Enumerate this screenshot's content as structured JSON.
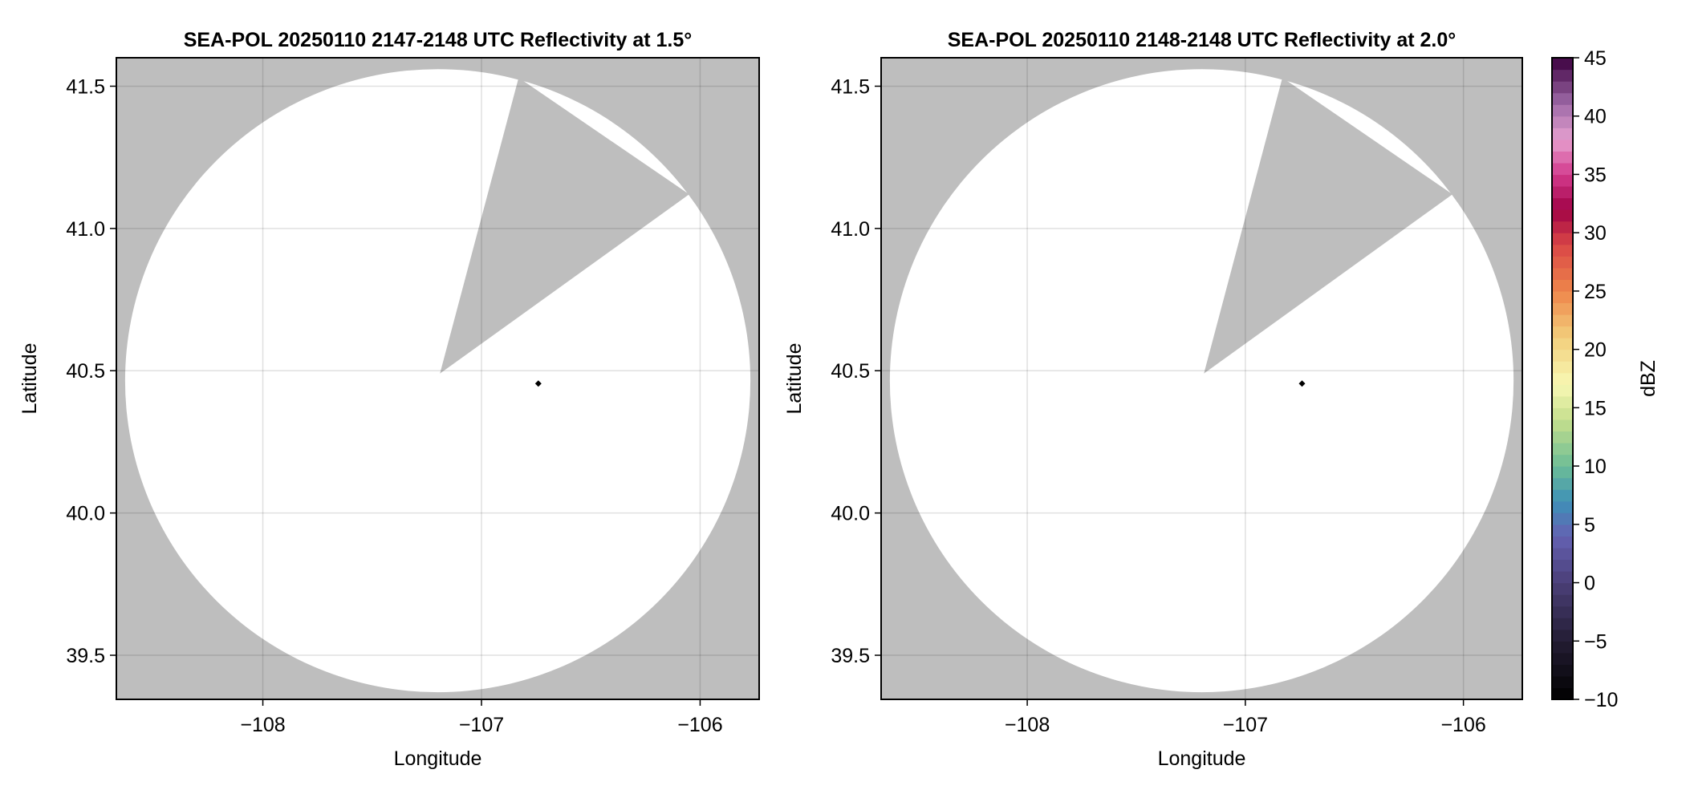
{
  "chart_data": [
    {
      "type": "heatmap",
      "title": "SEA-POL 20250110 2147-2148 UTC Reflectivity at 1.5°",
      "xlabel": "Longitude",
      "ylabel": "Latitude",
      "xlim": [
        -108.67,
        -105.73
      ],
      "ylim": [
        39.345,
        41.6
      ],
      "xticks": [
        -108,
        -107,
        -106
      ],
      "xtick_labels": [
        "−108",
        "−107",
        "−106"
      ],
      "yticks": [
        39.5,
        40.0,
        40.5,
        41.0,
        41.5
      ],
      "ytick_labels": [
        "39.5",
        "40.0",
        "40.5",
        "41.0",
        "41.5"
      ],
      "grid": true,
      "no_data_color": "#bebebe",
      "coverage_color": "#ffffff",
      "coverage_circle": {
        "center_lon": -107.2,
        "center_lat": 40.465,
        "radius_lon": 1.43,
        "radius_lat": 1.095
      },
      "blocked_sector": [
        [
          -107.19,
          40.49
        ],
        [
          -106.83,
          41.53
        ],
        [
          -106.05,
          41.12
        ]
      ],
      "marker": {
        "lon": -106.74,
        "lat": 40.455,
        "color": "#000000"
      }
    },
    {
      "type": "heatmap",
      "title": "SEA-POL 20250110 2148-2148 UTC Reflectivity at 2.0°",
      "xlabel": "Longitude",
      "ylabel": "Latitude",
      "xlim": [
        -108.67,
        -105.73
      ],
      "ylim": [
        39.345,
        41.6
      ],
      "xticks": [
        -108,
        -107,
        -106
      ],
      "xtick_labels": [
        "−108",
        "−107",
        "−106"
      ],
      "yticks": [
        39.5,
        40.0,
        40.5,
        41.0,
        41.5
      ],
      "ytick_labels": [
        "39.5",
        "40.0",
        "40.5",
        "41.0",
        "41.5"
      ],
      "grid": true,
      "no_data_color": "#bebebe",
      "coverage_color": "#ffffff",
      "coverage_circle": {
        "center_lon": -107.2,
        "center_lat": 40.465,
        "radius_lon": 1.43,
        "radius_lat": 1.095
      },
      "blocked_sector": [
        [
          -107.19,
          40.49
        ],
        [
          -106.83,
          41.53
        ],
        [
          -106.05,
          41.12
        ]
      ],
      "marker": {
        "lon": -106.74,
        "lat": 40.455,
        "color": "#000000"
      }
    }
  ],
  "colorbar": {
    "label": "dBZ",
    "range": [
      -10,
      45
    ],
    "step": 1,
    "ticks": [
      -10,
      -5,
      0,
      5,
      10,
      15,
      20,
      25,
      30,
      35,
      40,
      45
    ],
    "tick_labels": [
      "−10",
      "−5",
      "0",
      "5",
      "10",
      "15",
      "20",
      "25",
      "30",
      "35",
      "40",
      "45"
    ],
    "color_stops": [
      {
        "v": -10,
        "c": "#000000"
      },
      {
        "v": -5,
        "c": "#231d33"
      },
      {
        "v": 0,
        "c": "#4b3f78"
      },
      {
        "v": 4,
        "c": "#6461b2"
      },
      {
        "v": 7,
        "c": "#3e91b8"
      },
      {
        "v": 10,
        "c": "#6dbd96"
      },
      {
        "v": 14,
        "c": "#c6df8d"
      },
      {
        "v": 17,
        "c": "#f8f8b4"
      },
      {
        "v": 21,
        "c": "#f2cf7c"
      },
      {
        "v": 25,
        "c": "#ee864b"
      },
      {
        "v": 29,
        "c": "#d94646"
      },
      {
        "v": 32,
        "c": "#a10346"
      },
      {
        "v": 35,
        "c": "#d33a8d"
      },
      {
        "v": 38,
        "c": "#e6a0cf"
      },
      {
        "v": 41,
        "c": "#a06ba9"
      },
      {
        "v": 45,
        "c": "#3b003f"
      }
    ]
  }
}
